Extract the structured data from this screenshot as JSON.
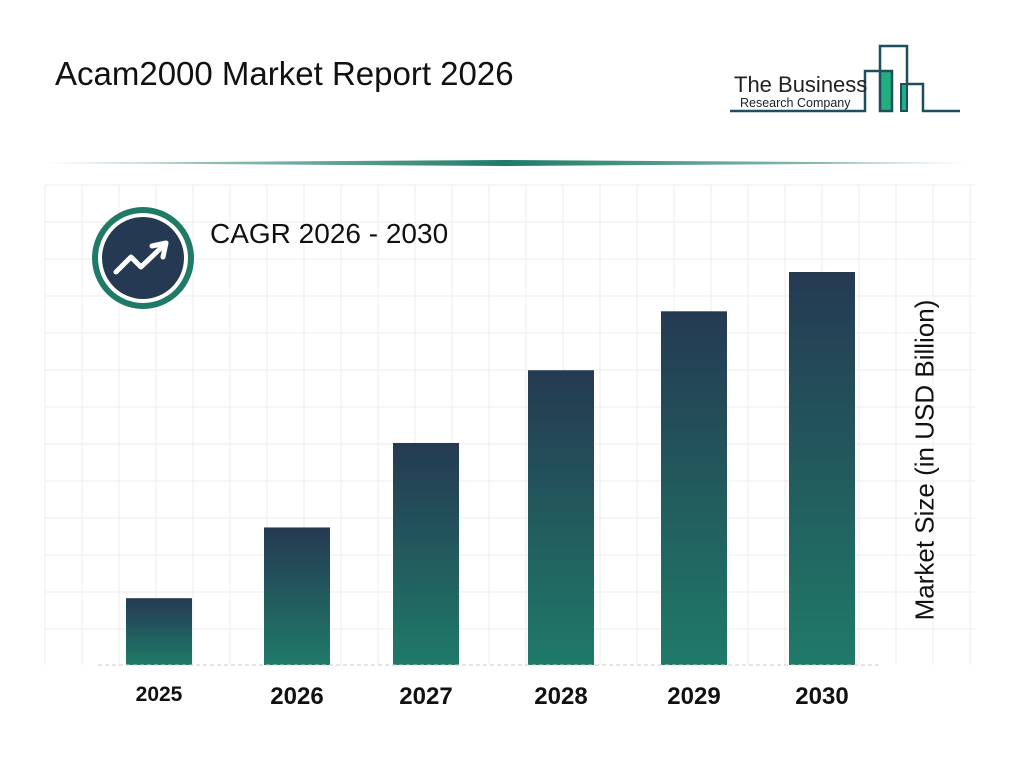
{
  "header": {
    "title": "Acam2000 Market Report 2026"
  },
  "logo": {
    "line1": "The Business",
    "line2": "Research Company",
    "colors": {
      "outline": "#1f4e5f",
      "fill": "#20b07f"
    }
  },
  "cagr": {
    "label": "CAGR 2026 - 2030",
    "icon": "trending-up-icon"
  },
  "colors": {
    "bar_top": "#253a52",
    "bar_bottom": "#1f7a68",
    "ring": "#1f7a68",
    "circle": "#253a52"
  },
  "chart_data": {
    "type": "bar",
    "title": "",
    "xlabel": "",
    "ylabel": "Market Size (in USD Billion)",
    "categories": [
      "2025",
      "2026",
      "2027",
      "2028",
      "2029",
      "2030"
    ],
    "values": [
      17,
      35,
      56.5,
      75,
      90,
      100
    ],
    "value_note_hidden": null,
    "grid": true,
    "legend": "none"
  }
}
